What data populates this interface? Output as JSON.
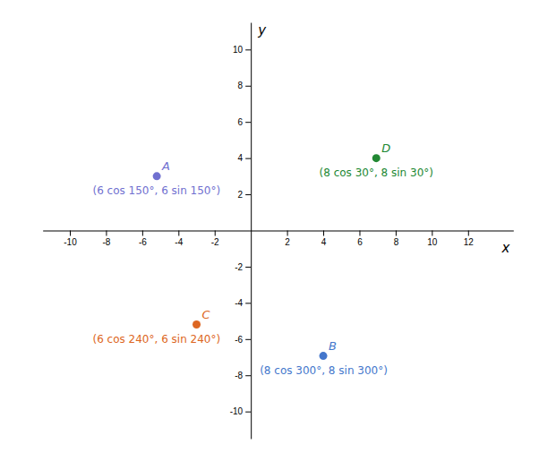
{
  "chart_data": {
    "type": "scatter",
    "x": [
      -5.196152422706632,
      4,
      -3,
      6.928203230275509
    ],
    "values": [
      3,
      -6.928203230275509,
      -5.196152422706632,
      4
    ],
    "labels": [
      "A",
      "B",
      "C",
      "D"
    ],
    "annotations": [
      "(6 cos 150°, 6 sin 150°)",
      "(8 cos 300°, 8 sin 300°)",
      "(6 cos 240°, 6 sin 240°)",
      "(8 cos 30°, 8 sin 30°)"
    ],
    "colors": [
      "#7070d0",
      "#4477cc",
      "#dd6622",
      "#228833"
    ],
    "xlim": [
      -11.5,
      14.5
    ],
    "ylim": [
      -11.5,
      11.5
    ],
    "xticks": [
      -10,
      -8,
      -6,
      -4,
      -2,
      2,
      4,
      6,
      8,
      10,
      12
    ],
    "yticks": [
      -10,
      -8,
      -6,
      -4,
      -2,
      2,
      4,
      6,
      8,
      10
    ],
    "xlabel": "x",
    "ylabel": "y"
  }
}
